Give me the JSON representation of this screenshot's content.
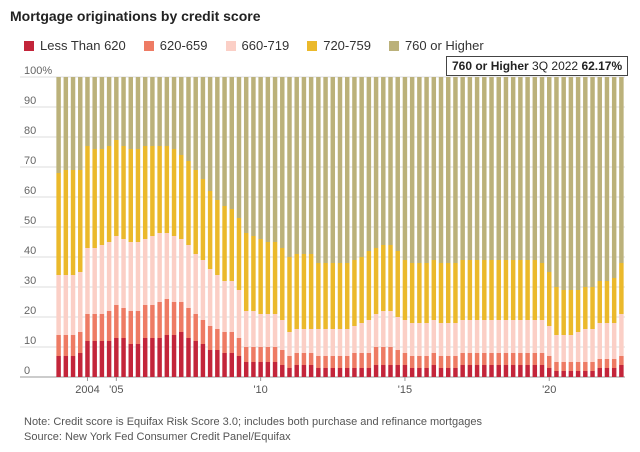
{
  "chart_data": {
    "type": "bar",
    "stacked": true,
    "percent": true,
    "title": "Mortgage originations by credit score",
    "ylim": [
      0,
      100
    ],
    "yticks": [
      0,
      10,
      20,
      30,
      40,
      50,
      60,
      70,
      80,
      90,
      100
    ],
    "ytick_labels": [
      "0",
      "10",
      "20",
      "30",
      "40",
      "50",
      "60",
      "70",
      "80",
      "90",
      "100%"
    ],
    "xtick_labels": [
      {
        "index": 4,
        "label": "2004"
      },
      {
        "index": 8,
        "label": "'05"
      },
      {
        "index": 28,
        "label": "'10"
      },
      {
        "index": 48,
        "label": "'15"
      },
      {
        "index": 68,
        "label": "'20"
      }
    ],
    "categories": [
      "2003Q1",
      "2003Q2",
      "2003Q3",
      "2003Q4",
      "2004Q1",
      "2004Q2",
      "2004Q3",
      "2004Q4",
      "2005Q1",
      "2005Q2",
      "2005Q3",
      "2005Q4",
      "2006Q1",
      "2006Q2",
      "2006Q3",
      "2006Q4",
      "2007Q1",
      "2007Q2",
      "2007Q3",
      "2007Q4",
      "2008Q1",
      "2008Q2",
      "2008Q3",
      "2008Q4",
      "2009Q1",
      "2009Q2",
      "2009Q3",
      "2009Q4",
      "2010Q1",
      "2010Q2",
      "2010Q3",
      "2010Q4",
      "2011Q1",
      "2011Q2",
      "2011Q3",
      "2011Q4",
      "2012Q1",
      "2012Q2",
      "2012Q3",
      "2012Q4",
      "2013Q1",
      "2013Q2",
      "2013Q3",
      "2013Q4",
      "2014Q1",
      "2014Q2",
      "2014Q3",
      "2014Q4",
      "2015Q1",
      "2015Q2",
      "2015Q3",
      "2015Q4",
      "2016Q1",
      "2016Q2",
      "2016Q3",
      "2016Q4",
      "2017Q1",
      "2017Q2",
      "2017Q3",
      "2017Q4",
      "2018Q1",
      "2018Q2",
      "2018Q3",
      "2018Q4",
      "2019Q1",
      "2019Q2",
      "2019Q3",
      "2019Q4",
      "2020Q1",
      "2020Q2",
      "2020Q3",
      "2020Q4",
      "2021Q1",
      "2021Q2",
      "2021Q3",
      "2021Q4",
      "2022Q1",
      "2022Q2",
      "2022Q3"
    ],
    "series": [
      {
        "name": "Less Than 620",
        "color": "#c3253a",
        "values": [
          7,
          7,
          7,
          8,
          12,
          12,
          12,
          12,
          13,
          13,
          11,
          11,
          13,
          13,
          13,
          14,
          14,
          15,
          13,
          12,
          11,
          9,
          9,
          8,
          8,
          7,
          5,
          5,
          5,
          5,
          5,
          4,
          3,
          4,
          4,
          4,
          3,
          3,
          3,
          3,
          3,
          3,
          3,
          3,
          4,
          4,
          4,
          4,
          4,
          3,
          3,
          3,
          4,
          3,
          3,
          3,
          4,
          4,
          4,
          4,
          4,
          4,
          4,
          4,
          4,
          4,
          4,
          4,
          3,
          2,
          2,
          2,
          2,
          2,
          2,
          3,
          3,
          3,
          4
        ]
      },
      {
        "name": "620-659",
        "color": "#ee7b64",
        "values": [
          7,
          7,
          7,
          7,
          9,
          9,
          9,
          10,
          11,
          10,
          11,
          11,
          11,
          11,
          12,
          12,
          11,
          10,
          10,
          9,
          8,
          8,
          7,
          7,
          7,
          6,
          5,
          5,
          5,
          5,
          5,
          5,
          4,
          4,
          4,
          4,
          4,
          4,
          4,
          4,
          4,
          5,
          5,
          5,
          6,
          6,
          6,
          5,
          4,
          4,
          4,
          4,
          4,
          4,
          4,
          4,
          4,
          4,
          4,
          4,
          4,
          4,
          4,
          4,
          4,
          4,
          4,
          4,
          4,
          3,
          3,
          3,
          3,
          3,
          3,
          3,
          3,
          3,
          3
        ]
      },
      {
        "name": "660-719",
        "color": "#fbcfc6",
        "values": [
          20,
          20,
          20,
          20,
          22,
          22,
          23,
          23,
          23,
          23,
          23,
          23,
          22,
          23,
          23,
          22,
          22,
          21,
          21,
          20,
          20,
          19,
          18,
          17,
          17,
          16,
          12,
          12,
          11,
          11,
          11,
          10,
          8,
          8,
          8,
          8,
          9,
          9,
          9,
          9,
          9,
          9,
          10,
          11,
          11,
          12,
          12,
          11,
          11,
          11,
          11,
          11,
          11,
          11,
          11,
          11,
          11,
          11,
          11,
          11,
          11,
          11,
          11,
          11,
          11,
          11,
          11,
          11,
          10,
          9,
          9,
          9,
          10,
          11,
          11,
          12,
          12,
          12,
          14
        ]
      },
      {
        "name": "720-759",
        "color": "#ebb92b",
        "values": [
          34,
          35,
          35,
          34,
          34,
          33,
          32,
          32,
          32,
          31,
          31,
          31,
          31,
          30,
          29,
          29,
          29,
          28,
          28,
          28,
          27,
          26,
          25,
          25,
          24,
          24,
          26,
          25,
          25,
          24,
          24,
          24,
          25,
          25,
          25,
          25,
          22,
          22,
          22,
          22,
          22,
          22,
          22,
          23,
          22,
          22,
          22,
          22,
          20,
          20,
          20,
          20,
          20,
          20,
          20,
          20,
          20,
          20,
          20,
          20,
          20,
          20,
          20,
          20,
          20,
          20,
          20,
          19,
          18,
          16,
          15,
          15,
          14,
          14,
          14,
          14,
          14,
          15,
          17
        ]
      },
      {
        "name": "760 or Higher",
        "color": "#bbb17a",
        "values": [
          32,
          31,
          31,
          31,
          23,
          24,
          24,
          23,
          21,
          23,
          24,
          24,
          23,
          23,
          23,
          23,
          24,
          26,
          28,
          31,
          34,
          38,
          41,
          43,
          44,
          47,
          52,
          53,
          54,
          55,
          55,
          57,
          60,
          59,
          59,
          59,
          62,
          62,
          62,
          62,
          62,
          61,
          60,
          58,
          57,
          56,
          56,
          58,
          61,
          62,
          62,
          62,
          61,
          62,
          62,
          62,
          61,
          61,
          61,
          61,
          61,
          61,
          61,
          61,
          61,
          61,
          61,
          62,
          65,
          70,
          71,
          71,
          71,
          70,
          70,
          68,
          68,
          67,
          62.17
        ]
      }
    ]
  },
  "legend": {
    "items": [
      "Less Than 620",
      "620-659",
      "660-719",
      "720-759",
      "760 or Higher"
    ]
  },
  "tooltip": {
    "series": "760 or Higher",
    "period": "3Q 2022",
    "value": "62.17%"
  },
  "notes": {
    "note": "Note: Credit score is Equifax Risk Score 3.0; includes both purchase and refinance mortgages",
    "source": "Source: New York Fed Consumer Credit Panel/Equifax"
  }
}
